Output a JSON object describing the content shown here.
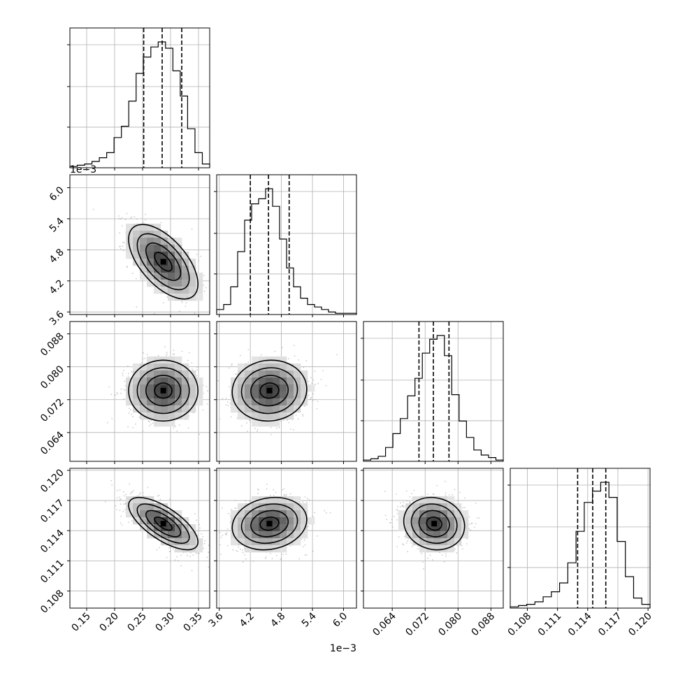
{
  "chart_data": {
    "type": "corner",
    "parameters": [
      {
        "range": [
          0.12,
          0.37
        ],
        "ticks": [
          0.15,
          0.2,
          0.25,
          0.3,
          0.35
        ],
        "tick_labels": [
          "0.15",
          "0.20",
          "0.25",
          "0.30",
          "0.35"
        ],
        "offset_label": "",
        "quantiles": [
          0.252,
          0.285,
          0.32
        ],
        "mean": 0.287,
        "sd": 0.031,
        "hist": [
          0.01,
          0.02,
          0.03,
          0.05,
          0.08,
          0.12,
          0.24,
          0.33,
          0.53,
          0.75,
          0.88,
          0.96,
          1.0,
          0.95,
          0.77,
          0.57,
          0.31,
          0.12,
          0.03
        ]
      },
      {
        "range": [
          3.55,
          6.25
        ],
        "ticks": [
          3.6,
          4.2,
          4.8,
          5.4,
          6.0
        ],
        "tick_labels": [
          "3.6",
          "4.2",
          "4.8",
          "5.4",
          "6.0"
        ],
        "offset_label": "1e−3",
        "quantiles": [
          4.2,
          4.55,
          4.95
        ],
        "mean": 4.57,
        "sd": 0.36,
        "hist": [
          0.04,
          0.08,
          0.22,
          0.5,
          0.75,
          0.88,
          0.92,
          1.0,
          0.86,
          0.6,
          0.37,
          0.22,
          0.13,
          0.08,
          0.06,
          0.04,
          0.02,
          0.01,
          0.01,
          0.01
        ]
      },
      {
        "range": [
          0.057,
          0.091
        ],
        "ticks": [
          0.064,
          0.072,
          0.08,
          0.088
        ],
        "tick_labels": [
          "0.064",
          "0.072",
          "0.080",
          "0.088"
        ],
        "offset_label": "",
        "quantiles": [
          0.0705,
          0.074,
          0.0778
        ],
        "mean": 0.0742,
        "sd": 0.0037,
        "hist": [
          0.01,
          0.02,
          0.04,
          0.11,
          0.22,
          0.34,
          0.52,
          0.66,
          0.86,
          0.97,
          1.0,
          0.84,
          0.53,
          0.32,
          0.19,
          0.09,
          0.05,
          0.03,
          0.01
        ]
      },
      {
        "range": [
          0.1063,
          0.1202
        ],
        "ticks": [
          0.108,
          0.111,
          0.114,
          0.117,
          0.12
        ],
        "tick_labels": [
          "0.108",
          "0.111",
          "0.114",
          "0.117",
          "0.120"
        ],
        "offset_label": "",
        "quantiles": [
          0.113,
          0.1145,
          0.1158
        ],
        "mean": 0.1147,
        "sd": 0.0013,
        "hist": [
          0.01,
          0.02,
          0.03,
          0.05,
          0.09,
          0.13,
          0.2,
          0.36,
          0.61,
          0.84,
          0.93,
          1.0,
          0.88,
          0.53,
          0.25,
          0.08,
          0.03
        ]
      }
    ],
    "correlations": {
      "1-0": -0.6,
      "2-0": 0.0,
      "2-1": 0.05,
      "3-0": -0.7,
      "3-1": 0.15,
      "3-2": -0.1
    },
    "grid": true,
    "colors": {
      "axis": "#000000",
      "grid": "#b0b0b0",
      "density": "#000000",
      "scatter": "#a0a0a0"
    }
  }
}
